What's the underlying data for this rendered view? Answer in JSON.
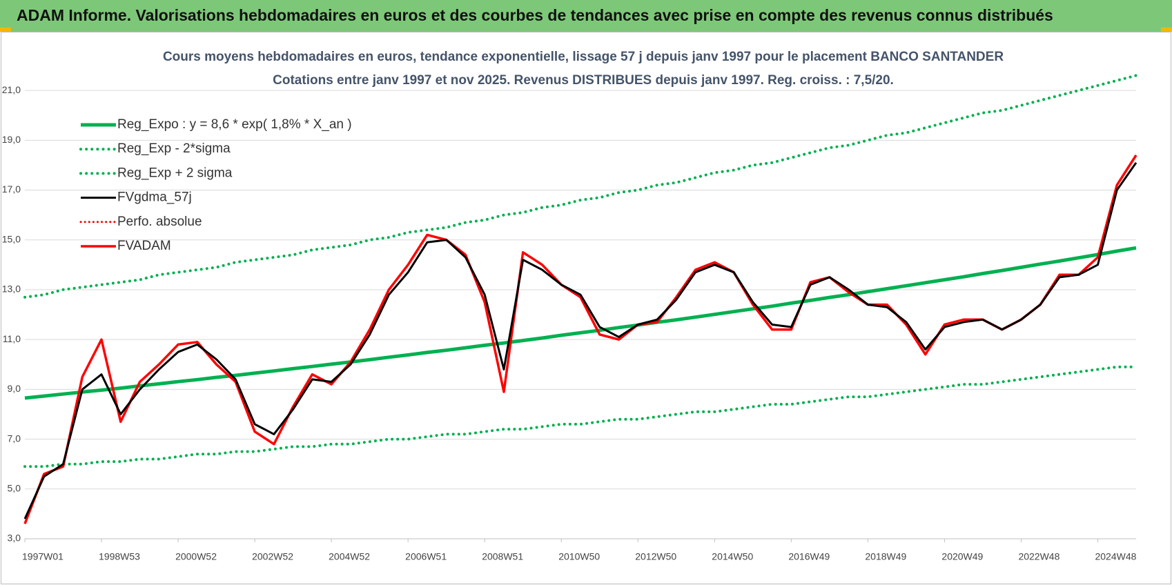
{
  "chart_data": {
    "type": "line",
    "title": "ADAM Informe. Valorisations hebdomadaires en euros et des courbes de tendances avec prise en compte des revenus connus distribués",
    "subtitle": [
      "Cours moyens hebdomadaires en euros, tendance exponentielle, lissage 57 j depuis janv 1997 pour le placement BANCO SANTANDER",
      "Cotations entre janv 1997 et nov 2025. Revenus DISTRIBUES depuis janv 1997. Reg. croiss. : 7,5/20."
    ],
    "categories": [
      "1997W01",
      null,
      null,
      null,
      "1998W53",
      null,
      null,
      null,
      "2000W52",
      null,
      null,
      null,
      "2002W52",
      null,
      null,
      null,
      "2004W52",
      null,
      null,
      null,
      "2006W51",
      null,
      null,
      null,
      "2008W51",
      null,
      null,
      null,
      "2010W50",
      null,
      null,
      null,
      "2012W50",
      null,
      null,
      null,
      "2014W50",
      null,
      null,
      null,
      "2016W49",
      null,
      null,
      null,
      "2018W49",
      null,
      null,
      null,
      "2020W49",
      null,
      null,
      null,
      "2022W48",
      null,
      null,
      null,
      "2024W48",
      null,
      null
    ],
    "series": [
      {
        "name": "Reg_Expo : y = 8,6 * exp( 1,8% *  X_an )",
        "color": "#00b050",
        "style": "solid",
        "width": 5,
        "values": [
          8.65,
          8.73,
          8.81,
          8.89,
          8.97,
          9.05,
          9.14,
          9.22,
          9.31,
          9.39,
          9.48,
          9.56,
          9.65,
          9.74,
          9.83,
          9.92,
          10.01,
          10.1,
          10.19,
          10.29,
          10.38,
          10.48,
          10.57,
          10.67,
          10.77,
          10.86,
          10.96,
          11.06,
          11.17,
          11.27,
          11.37,
          11.48,
          11.58,
          11.69,
          11.79,
          11.9,
          12.01,
          12.12,
          12.23,
          12.34,
          12.46,
          12.57,
          12.69,
          12.8,
          12.92,
          13.04,
          13.16,
          13.28,
          13.4,
          13.52,
          13.65,
          13.77,
          13.9,
          14.03,
          14.15,
          14.28,
          14.41,
          14.55,
          14.68
        ]
      },
      {
        "name": "Reg_Exp - 2*sigma",
        "color": "#00b050",
        "style": "dotted",
        "width": 4,
        "values": [
          5.9,
          5.9,
          6.0,
          6.0,
          6.1,
          6.1,
          6.2,
          6.2,
          6.3,
          6.4,
          6.4,
          6.5,
          6.5,
          6.6,
          6.7,
          6.7,
          6.8,
          6.8,
          6.9,
          7.0,
          7.0,
          7.1,
          7.2,
          7.2,
          7.3,
          7.4,
          7.4,
          7.5,
          7.6,
          7.6,
          7.7,
          7.8,
          7.8,
          7.9,
          8.0,
          8.1,
          8.1,
          8.2,
          8.3,
          8.4,
          8.4,
          8.5,
          8.6,
          8.7,
          8.7,
          8.8,
          8.9,
          9.0,
          9.1,
          9.2,
          9.2,
          9.3,
          9.4,
          9.5,
          9.6,
          9.7,
          9.8,
          9.9,
          9.9
        ]
      },
      {
        "name": "Reg_Exp + 2 sigma",
        "color": "#00b050",
        "style": "dotted",
        "width": 4,
        "values": [
          12.7,
          12.8,
          13.0,
          13.1,
          13.2,
          13.3,
          13.4,
          13.6,
          13.7,
          13.8,
          13.9,
          14.1,
          14.2,
          14.3,
          14.4,
          14.6,
          14.7,
          14.8,
          15.0,
          15.1,
          15.3,
          15.4,
          15.5,
          15.7,
          15.8,
          16.0,
          16.1,
          16.3,
          16.4,
          16.6,
          16.7,
          16.9,
          17.0,
          17.2,
          17.3,
          17.5,
          17.7,
          17.8,
          18.0,
          18.1,
          18.3,
          18.5,
          18.7,
          18.8,
          19.0,
          19.2,
          19.3,
          19.5,
          19.7,
          19.9,
          20.1,
          20.2,
          20.4,
          20.6,
          20.8,
          21.0,
          21.2,
          21.4,
          21.6
        ]
      },
      {
        "name": "FVgdma_57j",
        "color": "#000000",
        "style": "solid",
        "width": 3,
        "values": [
          3.8,
          5.5,
          6.0,
          9.0,
          9.6,
          8.0,
          9.0,
          9.8,
          10.5,
          10.8,
          10.2,
          9.4,
          7.6,
          7.2,
          8.2,
          9.4,
          9.3,
          10.0,
          11.2,
          12.8,
          13.7,
          14.9,
          15.0,
          14.3,
          12.8,
          9.8,
          14.2,
          13.8,
          13.2,
          12.8,
          11.5,
          11.1,
          11.6,
          11.8,
          12.6,
          13.7,
          14.0,
          13.7,
          12.5,
          11.6,
          11.5,
          13.2,
          13.5,
          13.0,
          12.4,
          12.3,
          11.7,
          10.6,
          11.5,
          11.7,
          11.8,
          11.4,
          11.8,
          12.4,
          13.5,
          13.6,
          14.0,
          17.0,
          18.1
        ]
      },
      {
        "name": "Perfo. absolue",
        "color": "#ff0000",
        "style": "dotted",
        "width": 3,
        "values": [
          null,
          null,
          null,
          null,
          null,
          null,
          null,
          null,
          null,
          null,
          null,
          null,
          null,
          null,
          null,
          null,
          null,
          null,
          null,
          null,
          null,
          null,
          null,
          null,
          null,
          null,
          null,
          null,
          null,
          null,
          null,
          null,
          null,
          null,
          null,
          null,
          null,
          null,
          null,
          null,
          null,
          null,
          null,
          null,
          null,
          null,
          null,
          null,
          null,
          null,
          null,
          null,
          null,
          null,
          null,
          null,
          null,
          null,
          null
        ]
      },
      {
        "name": "FVADAM",
        "color": "#ff0000",
        "style": "solid",
        "width": 3.5,
        "values": [
          3.6,
          5.6,
          5.9,
          9.5,
          11.0,
          7.7,
          9.3,
          10.0,
          10.8,
          10.9,
          10.0,
          9.3,
          7.3,
          6.8,
          8.3,
          9.6,
          9.2,
          10.1,
          11.4,
          13.0,
          14.0,
          15.2,
          15.0,
          14.4,
          12.5,
          8.9,
          14.5,
          14.0,
          13.2,
          12.7,
          11.2,
          11.0,
          11.6,
          11.7,
          12.7,
          13.8,
          14.1,
          13.7,
          12.4,
          11.4,
          11.4,
          13.3,
          13.5,
          12.9,
          12.4,
          12.4,
          11.6,
          10.4,
          11.6,
          11.8,
          11.8,
          11.4,
          11.8,
          12.4,
          13.6,
          13.6,
          14.3,
          17.2,
          18.4
        ]
      }
    ],
    "ylim": [
      3,
      22
    ],
    "yticks": [
      {
        "value": 3,
        "label": "3,0"
      },
      {
        "value": 5,
        "label": "5,0"
      },
      {
        "value": 7,
        "label": "7,0"
      },
      {
        "value": 9,
        "label": "9,0"
      },
      {
        "value": 11,
        "label": "11,0"
      },
      {
        "value": 13,
        "label": "13,0"
      },
      {
        "value": 15,
        "label": "15,0"
      },
      {
        "value": 17,
        "label": "17,0"
      },
      {
        "value": 19,
        "label": "19,0"
      },
      {
        "value": 21,
        "label": "21,0"
      }
    ],
    "grid": true,
    "legend": "top-left"
  }
}
